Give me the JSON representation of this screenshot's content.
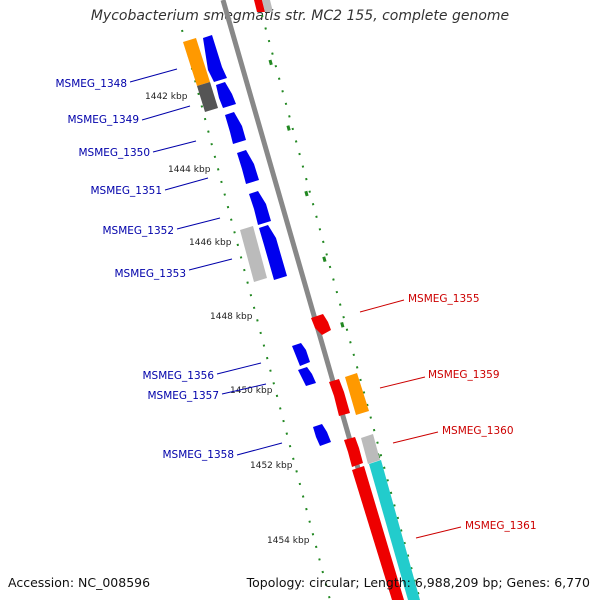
{
  "title": "Mycobacterium smegmatis str. MC2 155, complete genome",
  "footer": {
    "accession": "Accession: NC_008596",
    "summary": "Topology: circular; Length: 6,988,209 bp; Genes: 6,770"
  },
  "colors": {
    "forward_cds": "#0000ee",
    "reverse_cds": "#ee0000",
    "orange_feature": "#ff9900",
    "gray_feature": "#bbbbbb",
    "dark_gray_feature": "#555555",
    "cyan_feature": "#22cccc",
    "axis": "#888888",
    "ticks": "#228822",
    "left_label": "#0000aa",
    "right_label": "#cc0000"
  },
  "scale_ticks": [
    "1442 kbp",
    "1444 kbp",
    "1446 kbp",
    "1448 kbp",
    "1450 kbp",
    "1452 kbp",
    "1454 kbp"
  ],
  "left_genes": [
    "MSMEG_1348",
    "MSMEG_1349",
    "MSMEG_1350",
    "MSMEG_1351",
    "MSMEG_1352",
    "MSMEG_1353",
    "MSMEG_1356",
    "MSMEG_1357",
    "MSMEG_1358"
  ],
  "right_genes": [
    "MSMEG_1355",
    "MSMEG_1359",
    "MSMEG_1360",
    "MSMEG_1361"
  ]
}
